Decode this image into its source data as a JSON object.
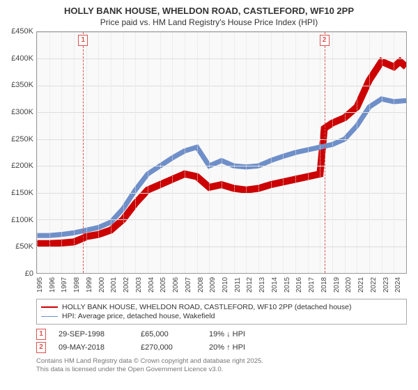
{
  "title": "HOLLY BANK HOUSE, WHELDON ROAD, CASTLEFORD, WF10 2PP",
  "subtitle": "Price paid vs. HM Land Registry's House Price Index (HPI)",
  "chart": {
    "type": "line",
    "background_color": "#f9f9f9",
    "grid_color": "#dddddd",
    "border_color": "#999999",
    "x": {
      "min": 1995,
      "max": 2025,
      "ticks": [
        1995,
        1996,
        1997,
        1998,
        1999,
        2000,
        2001,
        2002,
        2003,
        2004,
        2005,
        2006,
        2007,
        2008,
        2009,
        2010,
        2011,
        2012,
        2013,
        2014,
        2015,
        2016,
        2017,
        2018,
        2019,
        2020,
        2021,
        2022,
        2023,
        2024
      ]
    },
    "y": {
      "min": 0,
      "max": 450000,
      "ticks": [
        0,
        50000,
        100000,
        150000,
        200000,
        250000,
        300000,
        350000,
        400000,
        450000
      ],
      "tick_labels": [
        "£0",
        "£50K",
        "£100K",
        "£150K",
        "£200K",
        "£250K",
        "£300K",
        "£350K",
        "£400K",
        "£450K"
      ]
    },
    "series": [
      {
        "key": "price_paid",
        "label": "HOLLY BANK HOUSE, WHELDON ROAD, CASTLEFORD, WF10 2PP (detached house)",
        "color": "#cc0000",
        "width": 2.5,
        "data": [
          [
            1995,
            55000
          ],
          [
            1996,
            55000
          ],
          [
            1997,
            56000
          ],
          [
            1998,
            58000
          ],
          [
            1998.75,
            65000
          ],
          [
            1999,
            68000
          ],
          [
            2000,
            72000
          ],
          [
            2001,
            80000
          ],
          [
            2002,
            100000
          ],
          [
            2003,
            130000
          ],
          [
            2004,
            155000
          ],
          [
            2005,
            165000
          ],
          [
            2006,
            175000
          ],
          [
            2007,
            185000
          ],
          [
            2008,
            180000
          ],
          [
            2009,
            160000
          ],
          [
            2010,
            165000
          ],
          [
            2011,
            158000
          ],
          [
            2012,
            155000
          ],
          [
            2013,
            158000
          ],
          [
            2014,
            165000
          ],
          [
            2015,
            170000
          ],
          [
            2016,
            175000
          ],
          [
            2017,
            180000
          ],
          [
            2018,
            185000
          ],
          [
            2018.35,
            270000
          ],
          [
            2019,
            280000
          ],
          [
            2020,
            290000
          ],
          [
            2021,
            310000
          ],
          [
            2022,
            360000
          ],
          [
            2023,
            395000
          ],
          [
            2024,
            385000
          ],
          [
            2024.5,
            395000
          ],
          [
            2025,
            385000
          ]
        ]
      },
      {
        "key": "hpi",
        "label": "HPI: Average price, detached house, Wakefield",
        "color": "#6f8fc9",
        "width": 1.8,
        "data": [
          [
            1995,
            70000
          ],
          [
            1996,
            70000
          ],
          [
            1997,
            72000
          ],
          [
            1998,
            75000
          ],
          [
            1999,
            80000
          ],
          [
            2000,
            85000
          ],
          [
            2001,
            95000
          ],
          [
            2002,
            120000
          ],
          [
            2003,
            155000
          ],
          [
            2004,
            185000
          ],
          [
            2005,
            200000
          ],
          [
            2006,
            215000
          ],
          [
            2007,
            228000
          ],
          [
            2008,
            235000
          ],
          [
            2009,
            200000
          ],
          [
            2010,
            210000
          ],
          [
            2011,
            200000
          ],
          [
            2012,
            198000
          ],
          [
            2013,
            200000
          ],
          [
            2014,
            210000
          ],
          [
            2015,
            218000
          ],
          [
            2016,
            225000
          ],
          [
            2017,
            230000
          ],
          [
            2018,
            235000
          ],
          [
            2019,
            240000
          ],
          [
            2020,
            250000
          ],
          [
            2021,
            275000
          ],
          [
            2022,
            310000
          ],
          [
            2023,
            325000
          ],
          [
            2024,
            320000
          ],
          [
            2025,
            322000
          ]
        ]
      }
    ],
    "events": [
      {
        "num": "1",
        "year": 1998.75,
        "date": "29-SEP-1998",
        "price": "£65,000",
        "delta": "19% ↓ HPI"
      },
      {
        "num": "2",
        "year": 2018.35,
        "date": "09-MAY-2018",
        "price": "£270,000",
        "delta": "20% ↑ HPI"
      }
    ],
    "event_line_color": "#d9534f"
  },
  "footer_l1": "Contains HM Land Registry data © Crown copyright and database right 2025.",
  "footer_l2": "This data is licensed under the Open Government Licence v3.0."
}
